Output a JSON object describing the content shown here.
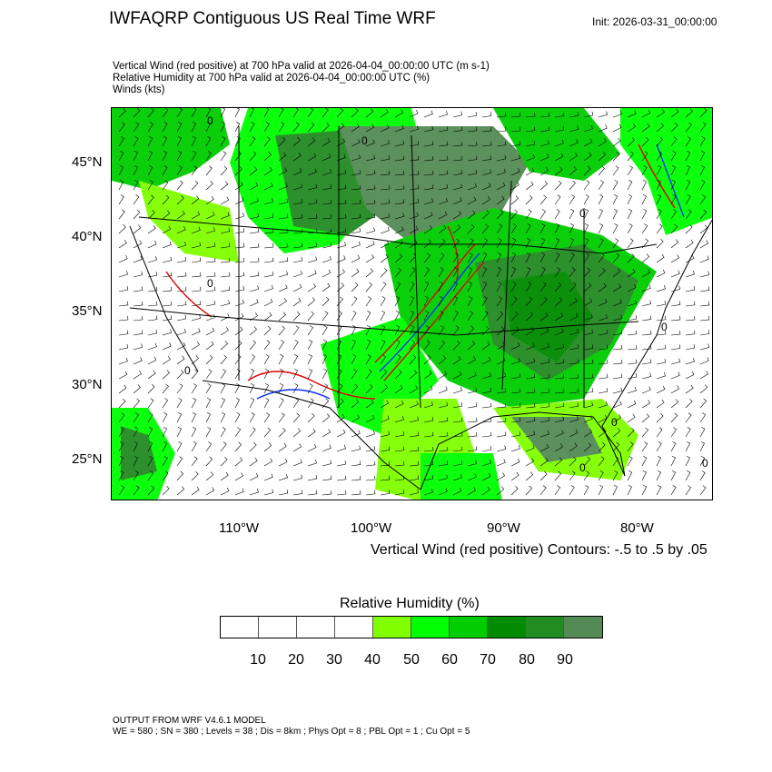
{
  "header": {
    "title": "IWFAQRP Contiguous US Real Time WRF",
    "init": "Init: 2026-03-31_00:00:00",
    "subtitles": [
      "Vertical Wind (red positive) at 700 hPa valid at 2026-04-04_00:00:00 UTC   (m s-1)",
      "Relative Humidity at 700 hPa valid at 2026-04-04_00:00:00 UTC   (%)",
      "Winds   (kts)"
    ]
  },
  "map": {
    "lat_labels": [
      "45°N",
      "40°N",
      "35°N",
      "30°N",
      "25°N"
    ],
    "lon_labels": [
      "110°W",
      "100°W",
      "90°W",
      "80°W"
    ],
    "contour_label": "0",
    "colors": {
      "updraft": "#e00000",
      "downdraft": "#1030ff",
      "wind_barbs": "#000000"
    }
  },
  "contour_info": "Vertical Wind (red positive) Contours: -.5 to .5 by .05",
  "colorbar": {
    "title": "Relative Humidity  (%)",
    "colors": [
      "#ffffff",
      "#ffffff",
      "#ffffff",
      "#ffffff",
      "#80ff00",
      "#00ff00",
      "#00cd00",
      "#008b00",
      "#228b22",
      "#548b54"
    ],
    "labels": [
      "10",
      "20",
      "30",
      "40",
      "50",
      "60",
      "70",
      "80",
      "90"
    ]
  },
  "footer": {
    "line1": "OUTPUT FROM WRF V4.6.1 MODEL",
    "line2": "WE = 580 ; SN = 380 ; Levels = 38 ; Dis = 8km ; Phys Opt = 8 ; PBL Opt = 1 ; Cu Opt = 5"
  }
}
